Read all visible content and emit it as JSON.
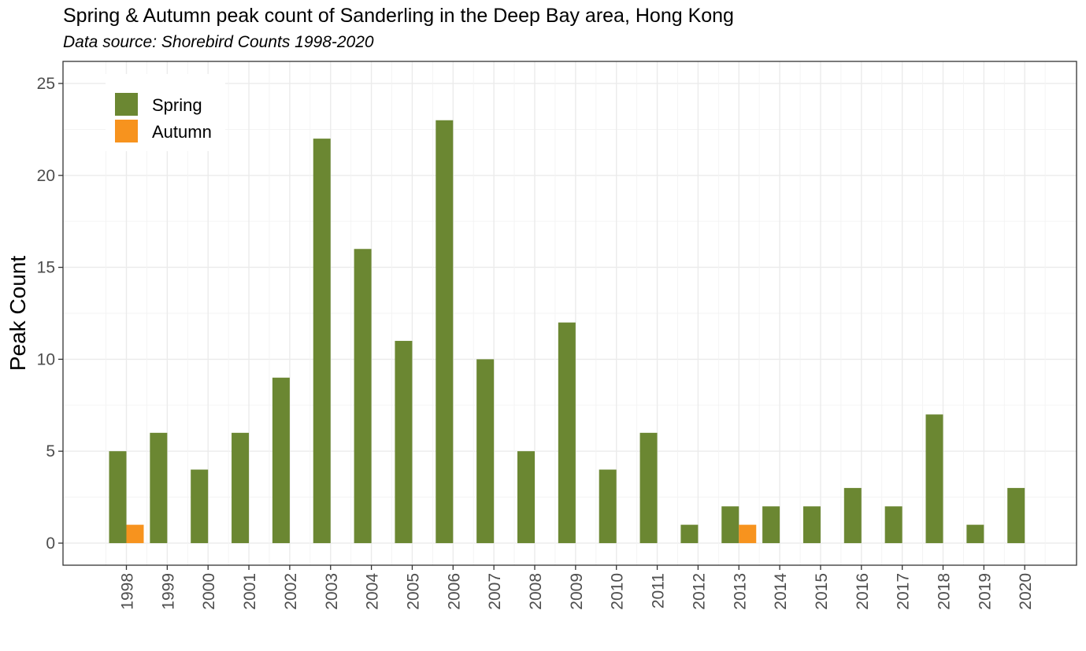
{
  "chart_data": {
    "type": "bar",
    "title": "Spring & Autumn peak count of Sanderling in the Deep Bay area, Hong Kong",
    "subtitle": "Data source: Shorebird Counts 1998-2020",
    "xlabel": "",
    "ylabel": "Peak Count",
    "ylim": [
      -1.2,
      26.2
    ],
    "yticks": [
      0,
      5,
      10,
      15,
      20,
      25
    ],
    "grid": true,
    "legend_position": "top-left",
    "categories": [
      "1998",
      "1999",
      "2000",
      "2001",
      "2002",
      "2003",
      "2004",
      "2005",
      "2006",
      "2007",
      "2008",
      "2009",
      "2010",
      "2011",
      "2012",
      "2013",
      "2014",
      "2015",
      "2016",
      "2017",
      "2018",
      "2019",
      "2020"
    ],
    "series": [
      {
        "name": "Spring",
        "color": "#6b8732",
        "values": [
          5,
          6,
          4,
          6,
          9,
          22,
          16,
          11,
          23,
          10,
          5,
          12,
          4,
          6,
          1,
          2,
          2,
          2,
          3,
          2,
          7,
          1,
          3
        ]
      },
      {
        "name": "Autumn",
        "color": "#f7931e",
        "values": [
          1,
          0,
          0,
          0,
          0,
          0,
          0,
          0,
          0,
          0,
          0,
          0,
          0,
          0,
          0,
          1,
          0,
          0,
          0,
          0,
          0,
          0,
          0
        ]
      }
    ]
  }
}
